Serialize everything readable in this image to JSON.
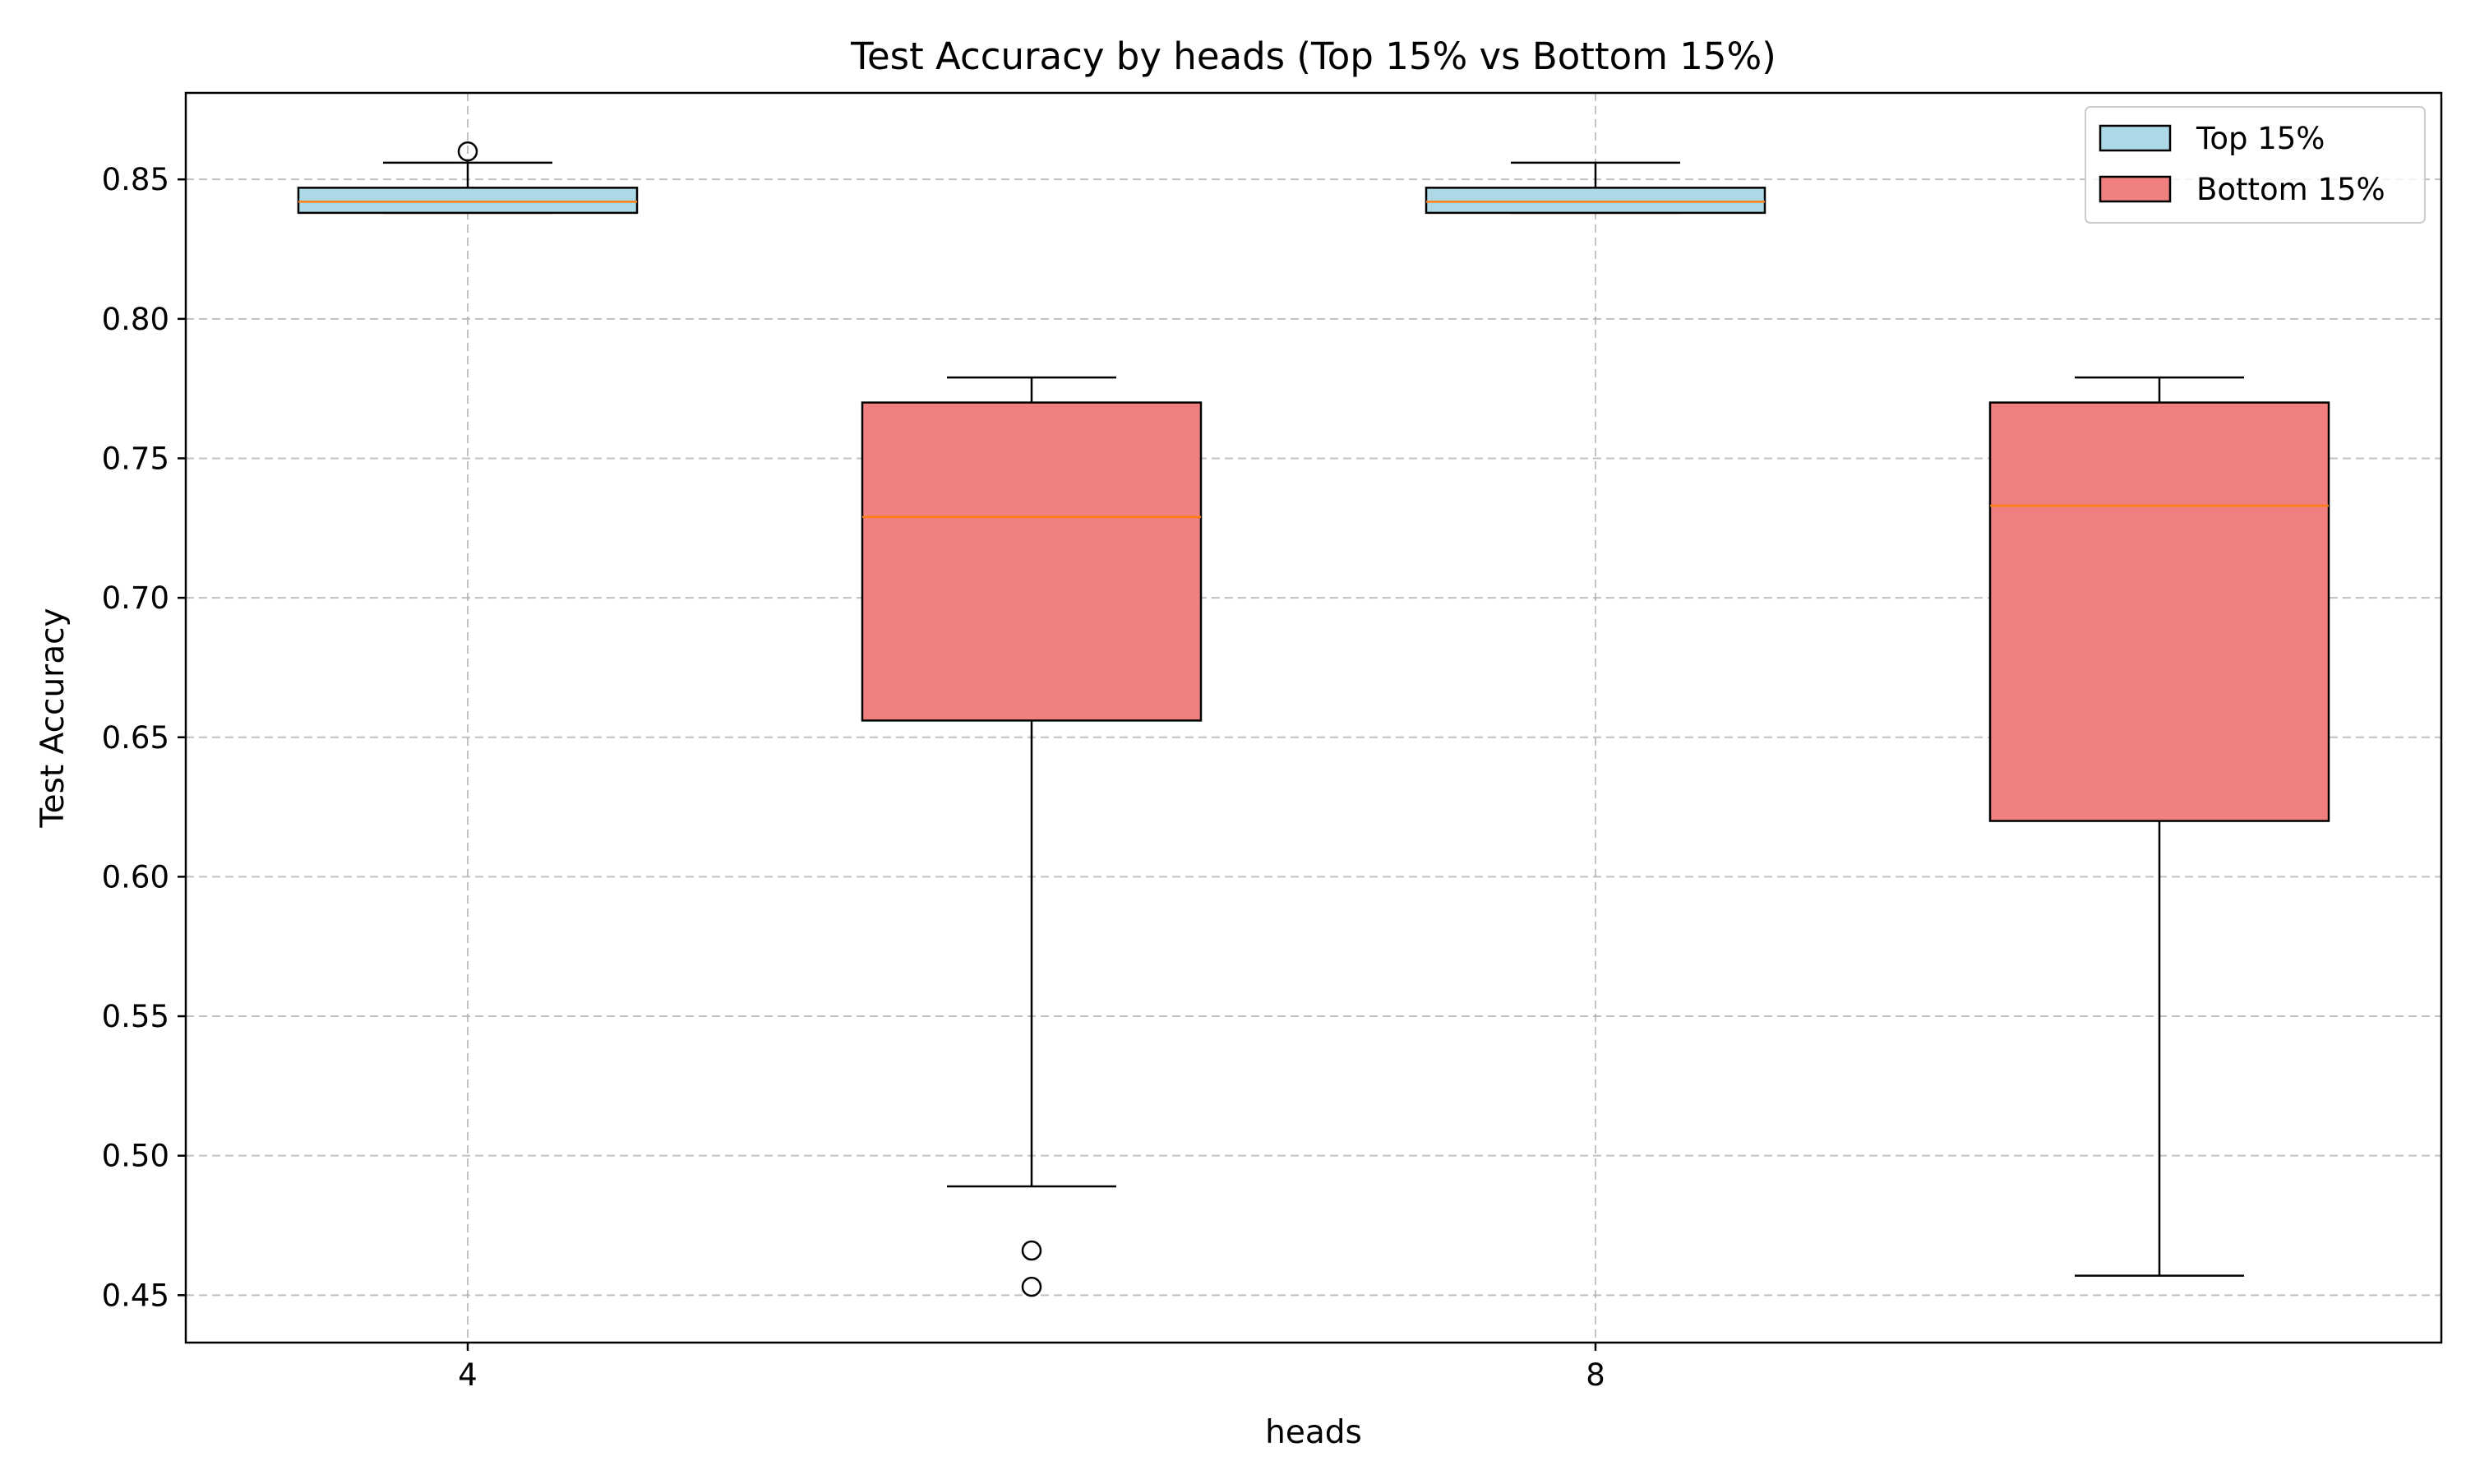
{
  "chart_data": {
    "type": "box",
    "title": "Test Accuracy by heads (Top 15% vs Bottom 15%)",
    "xlabel": "heads",
    "ylabel": "Test Accuracy",
    "x_tick_labels": [
      "4",
      "8"
    ],
    "y_ticks": [
      0.45,
      0.5,
      0.55,
      0.6,
      0.65,
      0.7,
      0.75,
      0.8,
      0.85
    ],
    "y_tick_labels": [
      "0.45",
      "0.50",
      "0.55",
      "0.60",
      "0.65",
      "0.70",
      "0.75",
      "0.80",
      "0.85"
    ],
    "ylim": [
      0.433,
      0.881
    ],
    "xlim": [
      0.5,
      4.5
    ],
    "grid": true,
    "legend_position": "top-right",
    "colors": {
      "top": "#add8e6",
      "bottom": "#f08080",
      "median": "#ff7f0e",
      "grid": "#b0b0b0",
      "edge": "#000000"
    },
    "series": [
      {
        "name": "Top 15%",
        "color_key": "top"
      },
      {
        "name": "Bottom 15%",
        "color_key": "bottom"
      }
    ],
    "boxes": [
      {
        "series": "Top 15%",
        "heads": "4",
        "pos": 1,
        "whisker_low": 0.838,
        "q1": 0.838,
        "median": 0.842,
        "q3": 0.847,
        "whisker_high": 0.856,
        "outliers": [
          0.86
        ]
      },
      {
        "series": "Bottom 15%",
        "heads": "4",
        "pos": 2,
        "whisker_low": 0.489,
        "q1": 0.656,
        "median": 0.729,
        "q3": 0.77,
        "whisker_high": 0.779,
        "outliers": [
          0.466,
          0.453
        ]
      },
      {
        "series": "Top 15%",
        "heads": "8",
        "pos": 3,
        "whisker_low": 0.838,
        "q1": 0.838,
        "median": 0.842,
        "q3": 0.847,
        "whisker_high": 0.856,
        "outliers": []
      },
      {
        "series": "Bottom 15%",
        "heads": "8",
        "pos": 4,
        "whisker_low": 0.457,
        "q1": 0.62,
        "median": 0.733,
        "q3": 0.77,
        "whisker_high": 0.779,
        "outliers": []
      }
    ]
  }
}
